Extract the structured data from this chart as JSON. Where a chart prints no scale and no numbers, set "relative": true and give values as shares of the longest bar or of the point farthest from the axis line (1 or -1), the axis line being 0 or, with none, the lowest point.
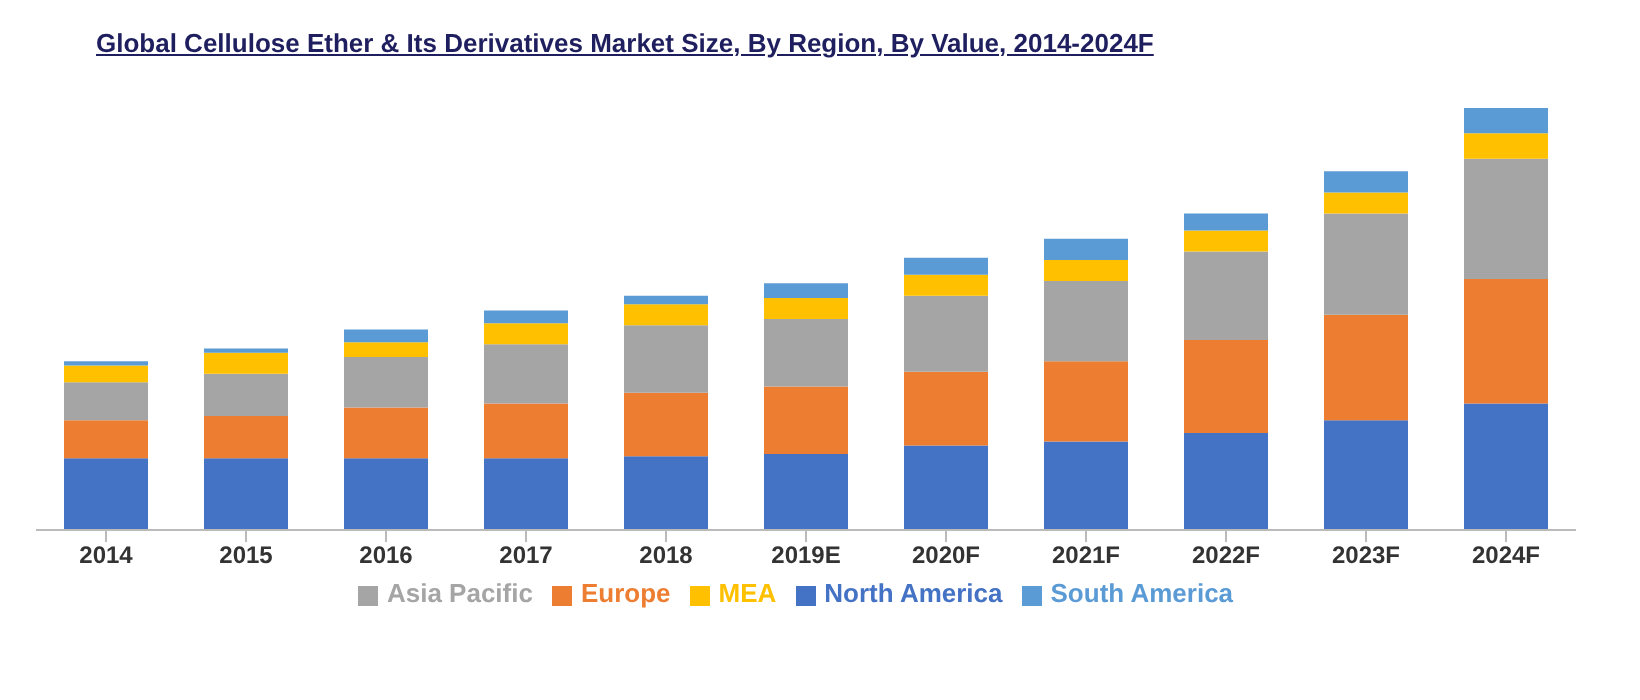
{
  "chart_data": {
    "type": "bar",
    "title": "Global Cellulose Ether & Its Derivatives Market Size, By Region, By Value, 2014-2024F",
    "categories": [
      "2014",
      "2015",
      "2016",
      "2017",
      "2018",
      "2019E",
      "2020F",
      "2021F",
      "2022F",
      "2023F",
      "2024F"
    ],
    "stacked": true,
    "relative": true,
    "legend": "bottom",
    "grid": false,
    "series": [
      {
        "name": "North America",
        "color": "#4472c4",
        "values": [
          0.17,
          0.17,
          0.17,
          0.17,
          0.175,
          0.18,
          0.2,
          0.21,
          0.23,
          0.26,
          0.3
        ]
      },
      {
        "name": "Europe",
        "color": "#ed7d31",
        "values": [
          0.09,
          0.1,
          0.12,
          0.13,
          0.15,
          0.16,
          0.175,
          0.19,
          0.22,
          0.25,
          0.295
        ]
      },
      {
        "name": "Asia Pacific",
        "color": "#a5a5a5",
        "values": [
          0.09,
          0.1,
          0.12,
          0.14,
          0.16,
          0.16,
          0.18,
          0.19,
          0.21,
          0.24,
          0.285
        ]
      },
      {
        "name": "MEA",
        "color": "#ffc000",
        "values": [
          0.04,
          0.05,
          0.035,
          0.05,
          0.05,
          0.05,
          0.05,
          0.05,
          0.05,
          0.05,
          0.06
        ]
      },
      {
        "name": "South America",
        "color": "#5b9bd5",
        "values": [
          0.01,
          0.01,
          0.03,
          0.03,
          0.02,
          0.035,
          0.04,
          0.05,
          0.04,
          0.05,
          0.06
        ]
      }
    ]
  }
}
